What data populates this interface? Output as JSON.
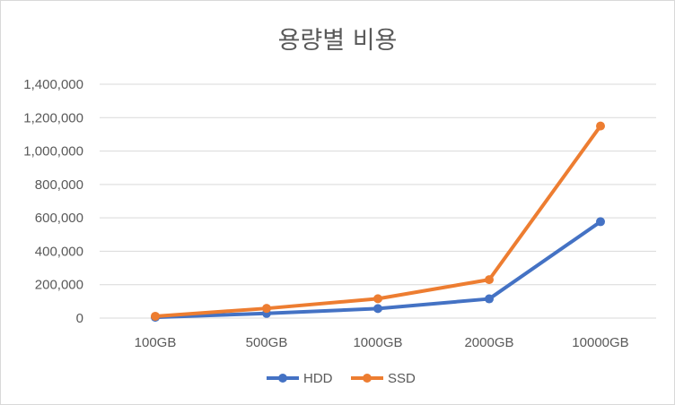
{
  "chart_data": {
    "type": "line",
    "title": "용량별 비용",
    "xlabel": "",
    "ylabel": "",
    "categories": [
      "100GB",
      "500GB",
      "1000GB",
      "2000GB",
      "10000GB"
    ],
    "series": [
      {
        "name": "HDD",
        "color": "#4472C4",
        "values": [
          5000,
          28000,
          57000,
          115000,
          577000
        ]
      },
      {
        "name": "SSD",
        "color": "#ED7D31",
        "values": [
          11000,
          58000,
          116000,
          230000,
          1150000
        ]
      }
    ],
    "ylim": [
      0,
      1400000
    ],
    "yticks": [
      0,
      200000,
      400000,
      600000,
      800000,
      1000000,
      1200000,
      1400000
    ],
    "ytick_labels": [
      "0",
      "200,000",
      "400,000",
      "600,000",
      "800,000",
      "1,000,000",
      "1,200,000",
      "1,400,000"
    ],
    "grid": true,
    "legend": "bottom"
  }
}
